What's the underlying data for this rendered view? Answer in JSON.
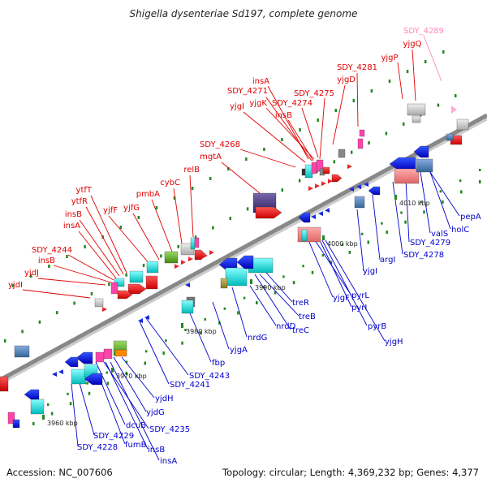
{
  "title": "Shigella dysenteriae Sd197, complete genome",
  "accession_text": "Accession: NC_007606",
  "summary_text": "Topology: circular; Length: 4,369,232 bp; Genes: 4,377",
  "colors": {
    "forward_label": "#e00000",
    "reverse_label": "#0000cc",
    "pseudo_label": "#ff88bb",
    "backbone": "#888888",
    "tick": "#228822"
  },
  "scale_labels": [
    {
      "text": "3960 kbp"
    },
    {
      "text": "3970 kbp"
    },
    {
      "text": "3980 kbp"
    },
    {
      "text": "3990 kbp"
    },
    {
      "text": "4000 kbp"
    },
    {
      "text": "4010 kbp"
    }
  ],
  "top_labels": [
    {
      "text": "SDY_4289",
      "strand": "pseudo"
    },
    {
      "text": "yjgQ",
      "strand": "forward"
    },
    {
      "text": "yjgP",
      "strand": "forward"
    },
    {
      "text": "SDY_4281",
      "strand": "forward"
    },
    {
      "text": "yjgD",
      "strand": "forward"
    },
    {
      "text": "SDY_4275",
      "strand": "forward"
    },
    {
      "text": "insA",
      "strand": "forward"
    },
    {
      "text": "SDY_4271",
      "strand": "forward"
    },
    {
      "text": "yjgK",
      "strand": "forward"
    },
    {
      "text": "SDY_4274",
      "strand": "forward"
    },
    {
      "text": "yjgI",
      "strand": "forward"
    },
    {
      "text": "insB",
      "strand": "forward"
    },
    {
      "text": "SDY_4268",
      "strand": "forward"
    },
    {
      "text": "mgtA",
      "strand": "forward"
    },
    {
      "text": "relB",
      "strand": "forward"
    },
    {
      "text": "cybC",
      "strand": "forward"
    },
    {
      "text": "pmbA",
      "strand": "forward"
    },
    {
      "text": "yjfG",
      "strand": "forward"
    },
    {
      "text": "yjfF",
      "strand": "forward"
    },
    {
      "text": "ytfT",
      "strand": "forward"
    },
    {
      "text": "ytfR",
      "strand": "forward"
    },
    {
      "text": "insB",
      "strand": "forward"
    },
    {
      "text": "insA",
      "strand": "forward"
    },
    {
      "text": "SDY_4244",
      "strand": "forward"
    },
    {
      "text": "insB",
      "strand": "forward"
    },
    {
      "text": "yjdJ",
      "strand": "forward"
    },
    {
      "text": "yjdI",
      "strand": "forward"
    }
  ],
  "bottom_labels": [
    {
      "text": "pepA",
      "strand": "reverse"
    },
    {
      "text": "holC",
      "strand": "reverse"
    },
    {
      "text": "valS",
      "strand": "reverse"
    },
    {
      "text": "SDY_4279",
      "strand": "reverse"
    },
    {
      "text": "SDY_4278",
      "strand": "reverse"
    },
    {
      "text": "argI",
      "strand": "reverse"
    },
    {
      "text": "yjgI",
      "strand": "reverse"
    },
    {
      "text": "pyrL",
      "strand": "reverse"
    },
    {
      "text": "yjgF",
      "strand": "reverse"
    },
    {
      "text": "pyrI",
      "strand": "reverse"
    },
    {
      "text": "pyrB",
      "strand": "reverse"
    },
    {
      "text": "yjgH",
      "strand": "reverse"
    },
    {
      "text": "treR",
      "strand": "reverse"
    },
    {
      "text": "treB",
      "strand": "reverse"
    },
    {
      "text": "nrdD",
      "strand": "reverse"
    },
    {
      "text": "treC",
      "strand": "reverse"
    },
    {
      "text": "nrdG",
      "strand": "reverse"
    },
    {
      "text": "yjgA",
      "strand": "reverse"
    },
    {
      "text": "fbp",
      "strand": "reverse"
    },
    {
      "text": "SDY_4243",
      "strand": "reverse"
    },
    {
      "text": "SDY_4241",
      "strand": "reverse"
    },
    {
      "text": "yjdH",
      "strand": "reverse"
    },
    {
      "text": "yjdG",
      "strand": "reverse"
    },
    {
      "text": "SDY_4235",
      "strand": "reverse"
    },
    {
      "text": "dcuB",
      "strand": "reverse"
    },
    {
      "text": "SDY_4229",
      "strand": "reverse"
    },
    {
      "text": "fumB",
      "strand": "reverse"
    },
    {
      "text": "insB",
      "strand": "reverse"
    },
    {
      "text": "SDY_4228",
      "strand": "reverse"
    },
    {
      "text": "insA",
      "strand": "reverse"
    }
  ]
}
